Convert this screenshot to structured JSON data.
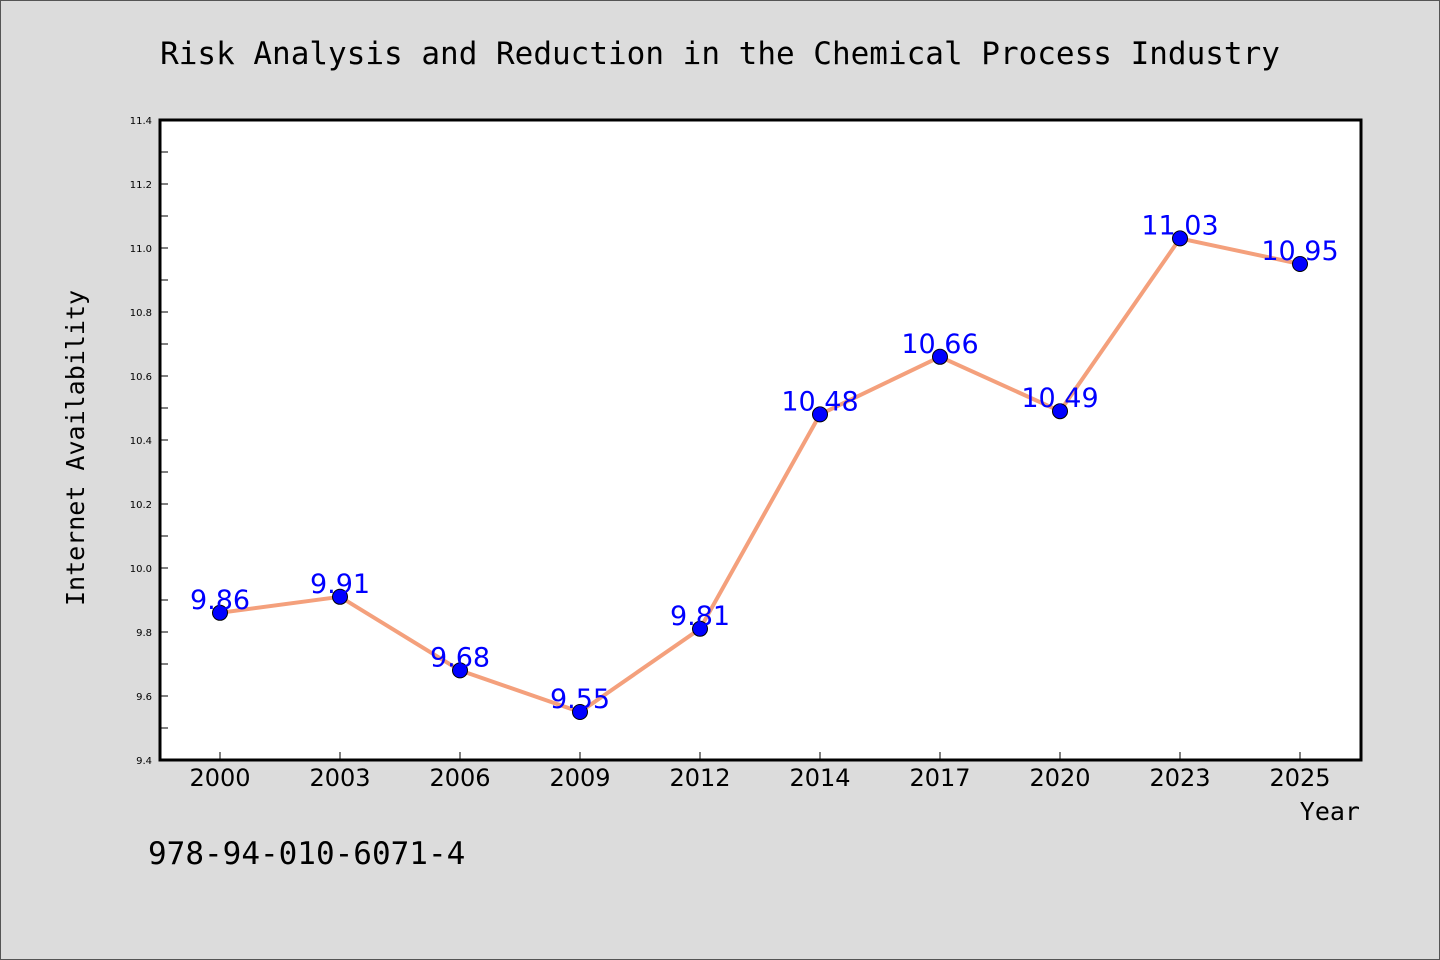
{
  "chart_data": {
    "type": "line",
    "title": "Risk Analysis and Reduction in the Chemical Process Industry",
    "xlabel": "Year",
    "ylabel": "Internet Availability",
    "categories": [
      "2000",
      "2003",
      "2006",
      "2009",
      "2012",
      "2014",
      "2017",
      "2020",
      "2023",
      "2025"
    ],
    "series": [
      {
        "values": [
          9.86,
          9.91,
          9.68,
          9.55,
          9.81,
          10.48,
          10.66,
          10.49,
          11.03,
          10.95
        ],
        "data_labels": [
          "9.86",
          "9.91",
          "9.68",
          "9.55",
          "9.81",
          "10.48",
          "10.66",
          "10.49",
          "11.03",
          "10.95"
        ]
      }
    ],
    "ylim": [
      9.4,
      11.4
    ],
    "yticks": [
      "9.4",
      "9.6",
      "9.8",
      "10.0",
      "10.2",
      "10.4",
      "10.6",
      "10.8",
      "11.0",
      "11.2",
      "11.4"
    ],
    "grid": false,
    "colors": {
      "line": "#f4a07c",
      "marker": "#0000ff",
      "data_label": "#0000ff",
      "plot_background": "#ffffff",
      "figure_background": "#dcdcdc"
    }
  },
  "footnote": "978-94-010-6071-4"
}
